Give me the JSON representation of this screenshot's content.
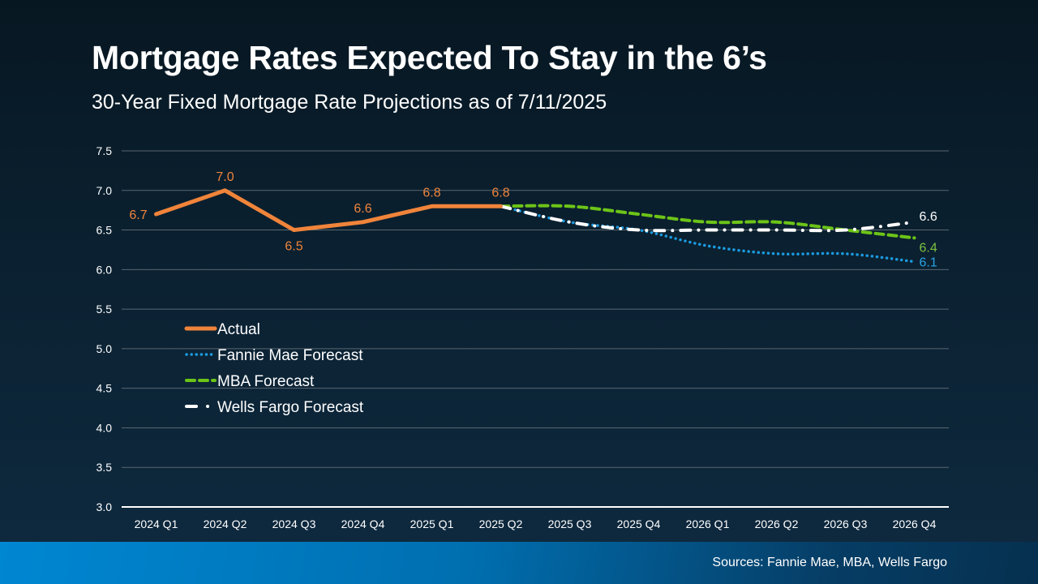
{
  "title": "Mortgage Rates Expected To Stay in the 6’s",
  "subtitle": "30-Year Fixed Mortgage Rate Projections as of 7/11/2025",
  "footer": {
    "sources": "Sources: Fannie Mae, MBA, Wells Fargo"
  },
  "chart_data": {
    "type": "line",
    "title": "Mortgage Rates Expected To Stay in the 6’s",
    "subtitle": "30-Year Fixed Mortgage Rate Projections as of 7/11/2025",
    "categories": [
      "2024 Q1",
      "2024 Q2",
      "2024 Q3",
      "2024 Q4",
      "2025 Q1",
      "2025 Q2",
      "2025 Q3",
      "2025 Q4",
      "2026 Q1",
      "2026 Q2",
      "2026 Q3",
      "2026 Q4"
    ],
    "ylim": [
      3.0,
      7.5
    ],
    "yticks": [
      "3.0",
      "3.5",
      "4.0",
      "4.5",
      "5.0",
      "5.5",
      "6.0",
      "6.5",
      "7.0",
      "7.5"
    ],
    "grid": true,
    "legend": "left",
    "series": [
      {
        "name": "Actual",
        "color": "#f0843a",
        "style": "solid",
        "values": [
          6.7,
          7.0,
          6.5,
          6.6,
          6.8,
          6.8,
          null,
          null,
          null,
          null,
          null,
          null
        ],
        "labels": [
          "6.7",
          "7.0",
          "6.5",
          "6.6",
          "6.8",
          "6.8"
        ]
      },
      {
        "name": "Fannie Mae Forecast",
        "color": "#1a9ae0",
        "style": "dotted",
        "values": [
          null,
          null,
          null,
          null,
          null,
          6.8,
          6.6,
          6.5,
          6.3,
          6.2,
          6.2,
          6.1
        ],
        "end_label": "6.1"
      },
      {
        "name": "MBA Forecast",
        "color": "#6cc417",
        "style": "dashed",
        "values": [
          null,
          null,
          null,
          null,
          null,
          6.8,
          6.8,
          6.7,
          6.6,
          6.6,
          6.5,
          6.4
        ],
        "end_label": "6.4"
      },
      {
        "name": "Wells Fargo Forecast",
        "color": "#ffffff",
        "style": "dash-dot",
        "values": [
          null,
          null,
          null,
          null,
          null,
          6.8,
          6.6,
          6.5,
          6.5,
          6.5,
          6.5,
          6.6
        ],
        "end_label": "6.6"
      }
    ]
  }
}
